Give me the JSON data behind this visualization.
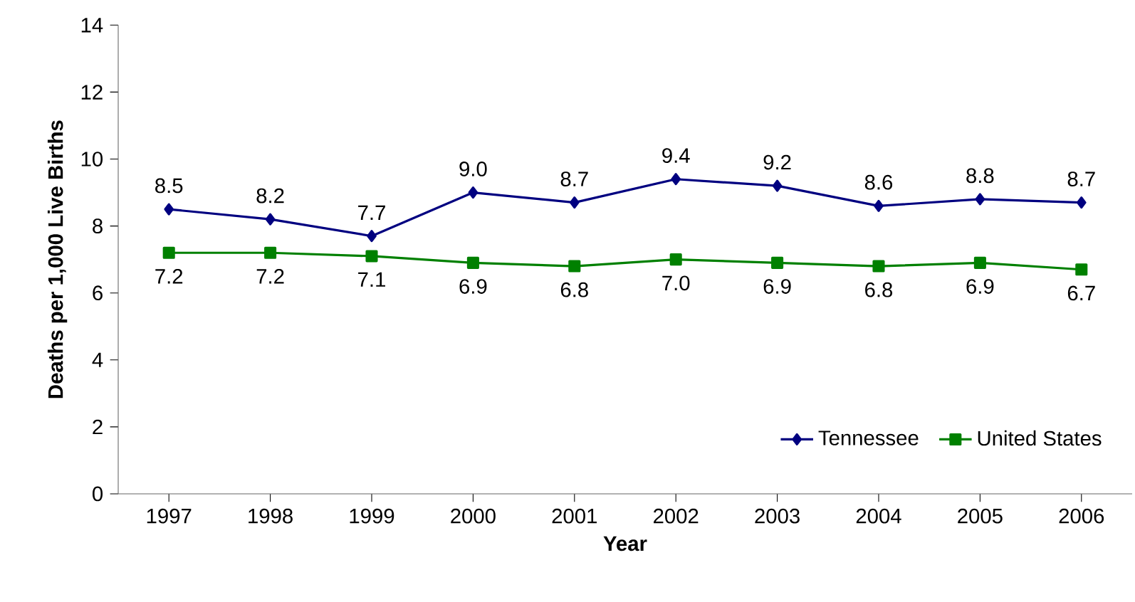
{
  "chart_data": {
    "type": "line",
    "xlabel": "Year",
    "ylabel": "Deaths per 1,000 Live Births",
    "categories": [
      "1997",
      "1998",
      "1999",
      "2000",
      "2001",
      "2002",
      "2003",
      "2004",
      "2005",
      "2006"
    ],
    "series": [
      {
        "name": "Tennessee",
        "color": "#000080",
        "marker": "diamond",
        "values": [
          8.5,
          8.2,
          7.7,
          9.0,
          8.7,
          9.4,
          9.2,
          8.6,
          8.8,
          8.7
        ],
        "value_labels": [
          "8.5",
          "8.2",
          "7.7",
          "9.0",
          "8.7",
          "9.4",
          "9.2",
          "8.6",
          "8.8",
          "8.7"
        ]
      },
      {
        "name": "United States",
        "color": "#008000",
        "marker": "square",
        "values": [
          7.2,
          7.2,
          7.1,
          6.9,
          6.8,
          7.0,
          6.9,
          6.8,
          6.9,
          6.7
        ],
        "value_labels": [
          "7.2",
          "7.2",
          "7.1",
          "6.9",
          "6.8",
          "7.0",
          "6.9",
          "6.8",
          "6.9",
          "6.7"
        ]
      }
    ],
    "ylim": [
      0,
      14
    ],
    "yticks": [
      0,
      2,
      4,
      6,
      8,
      10,
      12,
      14
    ],
    "grid": false,
    "legend": "bottom right",
    "line_style": "solid"
  }
}
